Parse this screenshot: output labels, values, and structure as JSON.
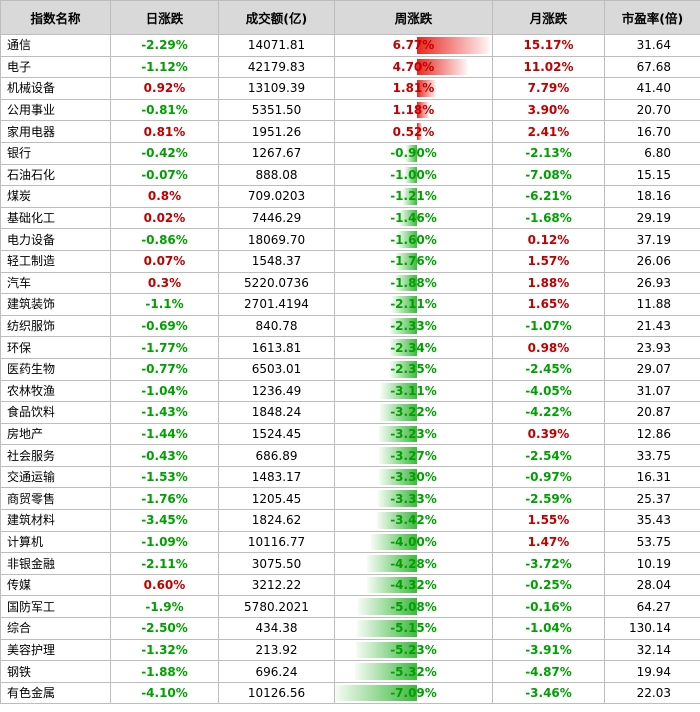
{
  "headers": [
    "指数名称",
    "日涨跌",
    "成交额(亿)",
    "周涨跌",
    "月涨跌",
    "市盈率(倍)"
  ],
  "colors": {
    "up_text": "#c00000",
    "down_text": "#00a000",
    "up_bar": "#e8271f",
    "down_bar": "#3cb93c"
  },
  "rows": [
    {
      "name": "通信",
      "day": "-2.29%",
      "day_dir": "down",
      "vol": "14071.81",
      "week": "6.77%",
      "week_val": 6.77,
      "month": "15.17%",
      "month_dir": "up",
      "pe": "31.64"
    },
    {
      "name": "电子",
      "day": "-1.12%",
      "day_dir": "down",
      "vol": "42179.83",
      "week": "4.70%",
      "week_val": 4.7,
      "month": "11.02%",
      "month_dir": "up",
      "pe": "67.68"
    },
    {
      "name": "机械设备",
      "day": "0.92%",
      "day_dir": "up",
      "vol": "13109.39",
      "week": "1.81%",
      "week_val": 1.81,
      "month": "7.79%",
      "month_dir": "up",
      "pe": "41.40"
    },
    {
      "name": "公用事业",
      "day": "-0.81%",
      "day_dir": "down",
      "vol": "5351.50",
      "week": "1.18%",
      "week_val": 1.18,
      "month": "3.90%",
      "month_dir": "up",
      "pe": "20.70"
    },
    {
      "name": "家用电器",
      "day": "0.81%",
      "day_dir": "up",
      "vol": "1951.26",
      "week": "0.52%",
      "week_val": 0.52,
      "month": "2.41%",
      "month_dir": "up",
      "pe": "16.70"
    },
    {
      "name": "银行",
      "day": "-0.42%",
      "day_dir": "down",
      "vol": "1267.67",
      "week": "-0.90%",
      "week_val": -0.9,
      "month": "-2.13%",
      "month_dir": "down",
      "pe": "6.80"
    },
    {
      "name": "石油石化",
      "day": "-0.07%",
      "day_dir": "down",
      "vol": "888.08",
      "week": "-1.00%",
      "week_val": -1.0,
      "month": "-7.08%",
      "month_dir": "down",
      "pe": "15.15"
    },
    {
      "name": "煤炭",
      "day": "0.8%",
      "day_dir": "up",
      "vol": "709.0203",
      "week": "-1.21%",
      "week_val": -1.21,
      "month": "-6.21%",
      "month_dir": "down",
      "pe": "18.16"
    },
    {
      "name": "基础化工",
      "day": "0.02%",
      "day_dir": "up",
      "vol": "7446.29",
      "week": "-1.46%",
      "week_val": -1.46,
      "month": "-1.68%",
      "month_dir": "down",
      "pe": "29.19"
    },
    {
      "name": "电力设备",
      "day": "-0.86%",
      "day_dir": "down",
      "vol": "18069.70",
      "week": "-1.60%",
      "week_val": -1.6,
      "month": "0.12%",
      "month_dir": "up",
      "pe": "37.19"
    },
    {
      "name": "轻工制造",
      "day": "0.07%",
      "day_dir": "up",
      "vol": "1548.37",
      "week": "-1.76%",
      "week_val": -1.76,
      "month": "1.57%",
      "month_dir": "up",
      "pe": "26.06"
    },
    {
      "name": "汽车",
      "day": "0.3%",
      "day_dir": "up",
      "vol": "5220.0736",
      "week": "-1.88%",
      "week_val": -1.88,
      "month": "1.88%",
      "month_dir": "up",
      "pe": "26.93"
    },
    {
      "name": "建筑装饰",
      "day": "-1.1%",
      "day_dir": "down",
      "vol": "2701.4194",
      "week": "-2.11%",
      "week_val": -2.11,
      "month": "1.65%",
      "month_dir": "up",
      "pe": "11.88"
    },
    {
      "name": "纺织服饰",
      "day": "-0.69%",
      "day_dir": "down",
      "vol": "840.78",
      "week": "-2.33%",
      "week_val": -2.33,
      "month": "-1.07%",
      "month_dir": "down",
      "pe": "21.43"
    },
    {
      "name": "环保",
      "day": "-1.77%",
      "day_dir": "down",
      "vol": "1613.81",
      "week": "-2.34%",
      "week_val": -2.34,
      "month": "0.98%",
      "month_dir": "up",
      "pe": "23.93"
    },
    {
      "name": "医药生物",
      "day": "-0.77%",
      "day_dir": "down",
      "vol": "6503.01",
      "week": "-2.35%",
      "week_val": -2.35,
      "month": "-2.45%",
      "month_dir": "down",
      "pe": "29.07"
    },
    {
      "name": "农林牧渔",
      "day": "-1.04%",
      "day_dir": "down",
      "vol": "1236.49",
      "week": "-3.11%",
      "week_val": -3.11,
      "month": "-4.05%",
      "month_dir": "down",
      "pe": "31.07"
    },
    {
      "name": "食品饮料",
      "day": "-1.43%",
      "day_dir": "down",
      "vol": "1848.24",
      "week": "-3.22%",
      "week_val": -3.22,
      "month": "-4.22%",
      "month_dir": "down",
      "pe": "20.87"
    },
    {
      "name": "房地产",
      "day": "-1.44%",
      "day_dir": "down",
      "vol": "1524.45",
      "week": "-3.23%",
      "week_val": -3.23,
      "month": "0.39%",
      "month_dir": "up",
      "pe": "12.86"
    },
    {
      "name": "社会服务",
      "day": "-0.43%",
      "day_dir": "down",
      "vol": "686.89",
      "week": "-3.27%",
      "week_val": -3.27,
      "month": "-2.54%",
      "month_dir": "down",
      "pe": "33.75"
    },
    {
      "name": "交通运输",
      "day": "-1.53%",
      "day_dir": "down",
      "vol": "1483.17",
      "week": "-3.30%",
      "week_val": -3.3,
      "month": "-0.97%",
      "month_dir": "down",
      "pe": "16.31"
    },
    {
      "name": "商贸零售",
      "day": "-1.76%",
      "day_dir": "down",
      "vol": "1205.45",
      "week": "-3.33%",
      "week_val": -3.33,
      "month": "-2.59%",
      "month_dir": "down",
      "pe": "25.37"
    },
    {
      "name": "建筑材料",
      "day": "-3.45%",
      "day_dir": "down",
      "vol": "1824.62",
      "week": "-3.42%",
      "week_val": -3.42,
      "month": "1.55%",
      "month_dir": "up",
      "pe": "35.43"
    },
    {
      "name": "计算机",
      "day": "-1.09%",
      "day_dir": "down",
      "vol": "10116.77",
      "week": "-4.00%",
      "week_val": -4.0,
      "month": "1.47%",
      "month_dir": "up",
      "pe": "53.75"
    },
    {
      "name": "非银金融",
      "day": "-2.11%",
      "day_dir": "down",
      "vol": "3075.50",
      "week": "-4.28%",
      "week_val": -4.28,
      "month": "-3.72%",
      "month_dir": "down",
      "pe": "10.19"
    },
    {
      "name": "传媒",
      "day": "0.60%",
      "day_dir": "up",
      "vol": "3212.22",
      "week": "-4.32%",
      "week_val": -4.32,
      "month": "-0.25%",
      "month_dir": "down",
      "pe": "28.04"
    },
    {
      "name": "国防军工",
      "day": "-1.9%",
      "day_dir": "down",
      "vol": "5780.2021",
      "week": "-5.08%",
      "week_val": -5.08,
      "month": "-0.16%",
      "month_dir": "down",
      "pe": "64.27"
    },
    {
      "name": "综合",
      "day": "-2.50%",
      "day_dir": "down",
      "vol": "434.38",
      "week": "-5.15%",
      "week_val": -5.15,
      "month": "-1.04%",
      "month_dir": "down",
      "pe": "130.14"
    },
    {
      "name": "美容护理",
      "day": "-1.32%",
      "day_dir": "down",
      "vol": "213.92",
      "week": "-5.23%",
      "week_val": -5.23,
      "month": "-3.91%",
      "month_dir": "down",
      "pe": "32.14"
    },
    {
      "name": "钢铁",
      "day": "-1.88%",
      "day_dir": "down",
      "vol": "696.24",
      "week": "-5.32%",
      "week_val": -5.32,
      "month": "-4.87%",
      "month_dir": "down",
      "pe": "19.94"
    },
    {
      "name": "有色金属",
      "day": "-4.10%",
      "day_dir": "down",
      "vol": "10126.56",
      "week": "-7.09%",
      "week_val": -7.09,
      "month": "-3.46%",
      "month_dir": "down",
      "pe": "22.03"
    }
  ]
}
